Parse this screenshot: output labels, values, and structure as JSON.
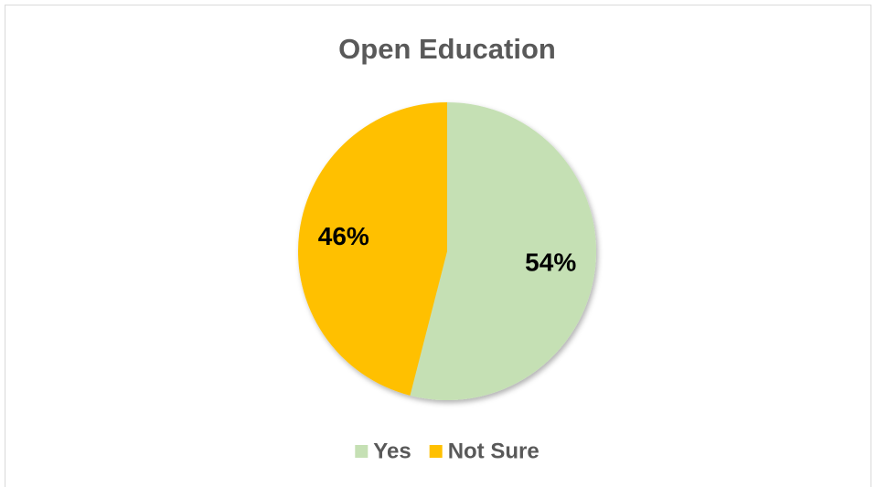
{
  "chart_data": {
    "type": "pie",
    "title": "Open Education",
    "categories": [
      "Yes",
      "Not Sure"
    ],
    "values": [
      54,
      46
    ],
    "value_labels": [
      "54%",
      "46%"
    ],
    "colors": [
      "#c5e0b4",
      "#ffc000"
    ],
    "legend": "bottom"
  }
}
